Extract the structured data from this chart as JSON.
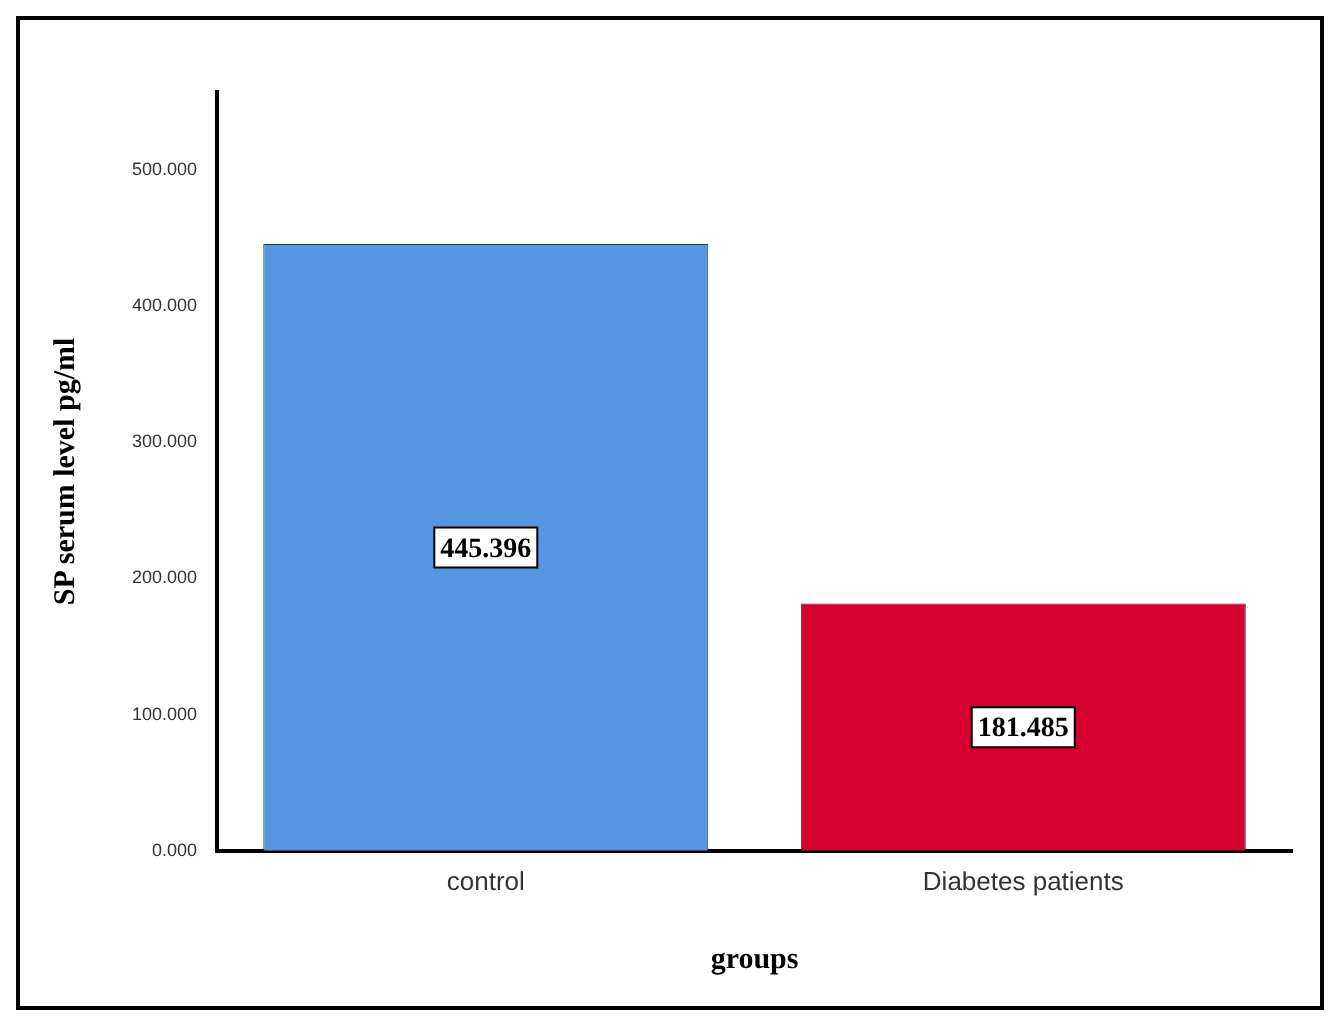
{
  "chart_data": {
    "type": "bar",
    "xlabel": "groups",
    "ylabel": "SP serum level pg/ml",
    "categories": [
      "control",
      "Diabetes patients"
    ],
    "values": [
      445.396,
      181.485
    ],
    "colors": [
      "#5595e2",
      "#d4002d"
    ],
    "ylim": [
      0,
      557
    ],
    "yticks": [
      {
        "value": 0,
        "label": "0.000"
      },
      {
        "value": 100,
        "label": "100.000"
      },
      {
        "value": 200,
        "label": "200.000"
      },
      {
        "value": 300,
        "label": "300.000"
      },
      {
        "value": 400,
        "label": "400.000"
      },
      {
        "value": 500,
        "label": "500.000"
      }
    ],
    "data_labels": true,
    "grid": false,
    "legend": false
  }
}
